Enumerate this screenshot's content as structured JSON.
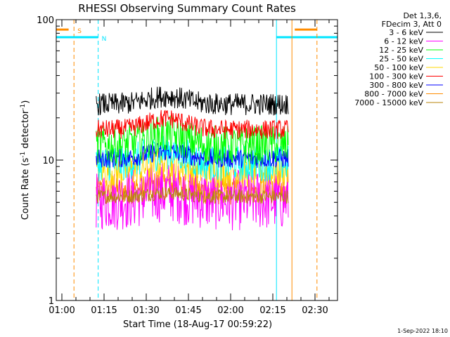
{
  "chart_data": {
    "type": "line",
    "title": "RHESSI Observing Summary Count Rates",
    "xlabel": "Start Time (18-Aug-17 00:59:22)",
    "ylabel_main": "Count Rate (s",
    "ylabel_sup": "-1",
    "ylabel_mid": " detector",
    "ylabel_sup2": "-1",
    "ylabel_end": ")",
    "y_scale": "log",
    "ylim": [
      1,
      100
    ],
    "xlim_minutes": [
      -2,
      98
    ],
    "x_ticks": [
      {
        "label": "01:00",
        "minutes": 0
      },
      {
        "label": "01:15",
        "minutes": 15
      },
      {
        "label": "01:30",
        "minutes": 30
      },
      {
        "label": "01:45",
        "minutes": 45
      },
      {
        "label": "02:00",
        "minutes": 60
      },
      {
        "label": "02:15",
        "minutes": 75
      },
      {
        "label": "02:30",
        "minutes": 90
      }
    ],
    "y_ticks": [
      {
        "label": "1",
        "value": 1
      },
      {
        "label": "10",
        "value": 10
      },
      {
        "label": "100",
        "value": 100
      }
    ],
    "legend_header": [
      "Det 1,3,6,",
      "FDecim 3, Att 0"
    ],
    "legend_placement": "right",
    "series": [
      {
        "name": "3 - 6 keV",
        "color": "#000000",
        "level": 25,
        "noise": 0.08,
        "bump": 0.14
      },
      {
        "name": "6 - 12 keV",
        "color": "#ff00ff",
        "level": 5.2,
        "noise": 0.22,
        "bump": 0.15
      },
      {
        "name": "12 - 25 keV",
        "color": "#00ff00",
        "level": 12.8,
        "noise": 0.14,
        "bump": 0.18
      },
      {
        "name": "25 - 50 keV",
        "color": "#00ffff",
        "level": 9.5,
        "noise": 0.13,
        "bump": 0.22
      },
      {
        "name": "50 - 100 keV",
        "color": "#ffd700",
        "level": 8.3,
        "noise": 0.12,
        "bump": 0.14
      },
      {
        "name": "100 - 300 keV",
        "color": "#ff0000",
        "level": 16.5,
        "noise": 0.07,
        "bump": 0.2
      },
      {
        "name": "300 - 800 keV",
        "color": "#0000ff",
        "level": 10.3,
        "noise": 0.07,
        "bump": 0.12
      },
      {
        "name": "800 - 7000 keV",
        "color": "#ff8c00",
        "level": 6.0,
        "noise": 0.1,
        "bump": 0.12
      },
      {
        "name": "7000 - 15000 keV",
        "color": "#b8860b",
        "level": 5.5,
        "noise": 0.05,
        "bump": 0.06
      }
    ],
    "data_window_minutes": [
      12.2,
      80.5
    ],
    "markers": [
      {
        "label": "S",
        "color": "#ff8c00",
        "minutes": 4.3,
        "bar_from": -2,
        "bar_to": 2.4,
        "value": 85
      },
      {
        "label": "N",
        "color": "#00e5ff",
        "minutes": 12.9,
        "bar_from": -2,
        "bar_to": 12.9,
        "value": 75
      }
    ],
    "end_lines": [
      {
        "color": "#00e5ff",
        "minutes": 76.3,
        "style": "solid",
        "bar_from": 76.3,
        "bar_to": 98,
        "value": 75
      },
      {
        "color": "#ff8c00",
        "minutes": 81.8,
        "style": "solid",
        "bar_from": 82.8,
        "bar_to": 90.7,
        "value": 85
      },
      {
        "color": "#ff8c00",
        "minutes": 90.7,
        "style": "dashed"
      }
    ],
    "footer_date": "1-Sep-2022 18:10"
  }
}
